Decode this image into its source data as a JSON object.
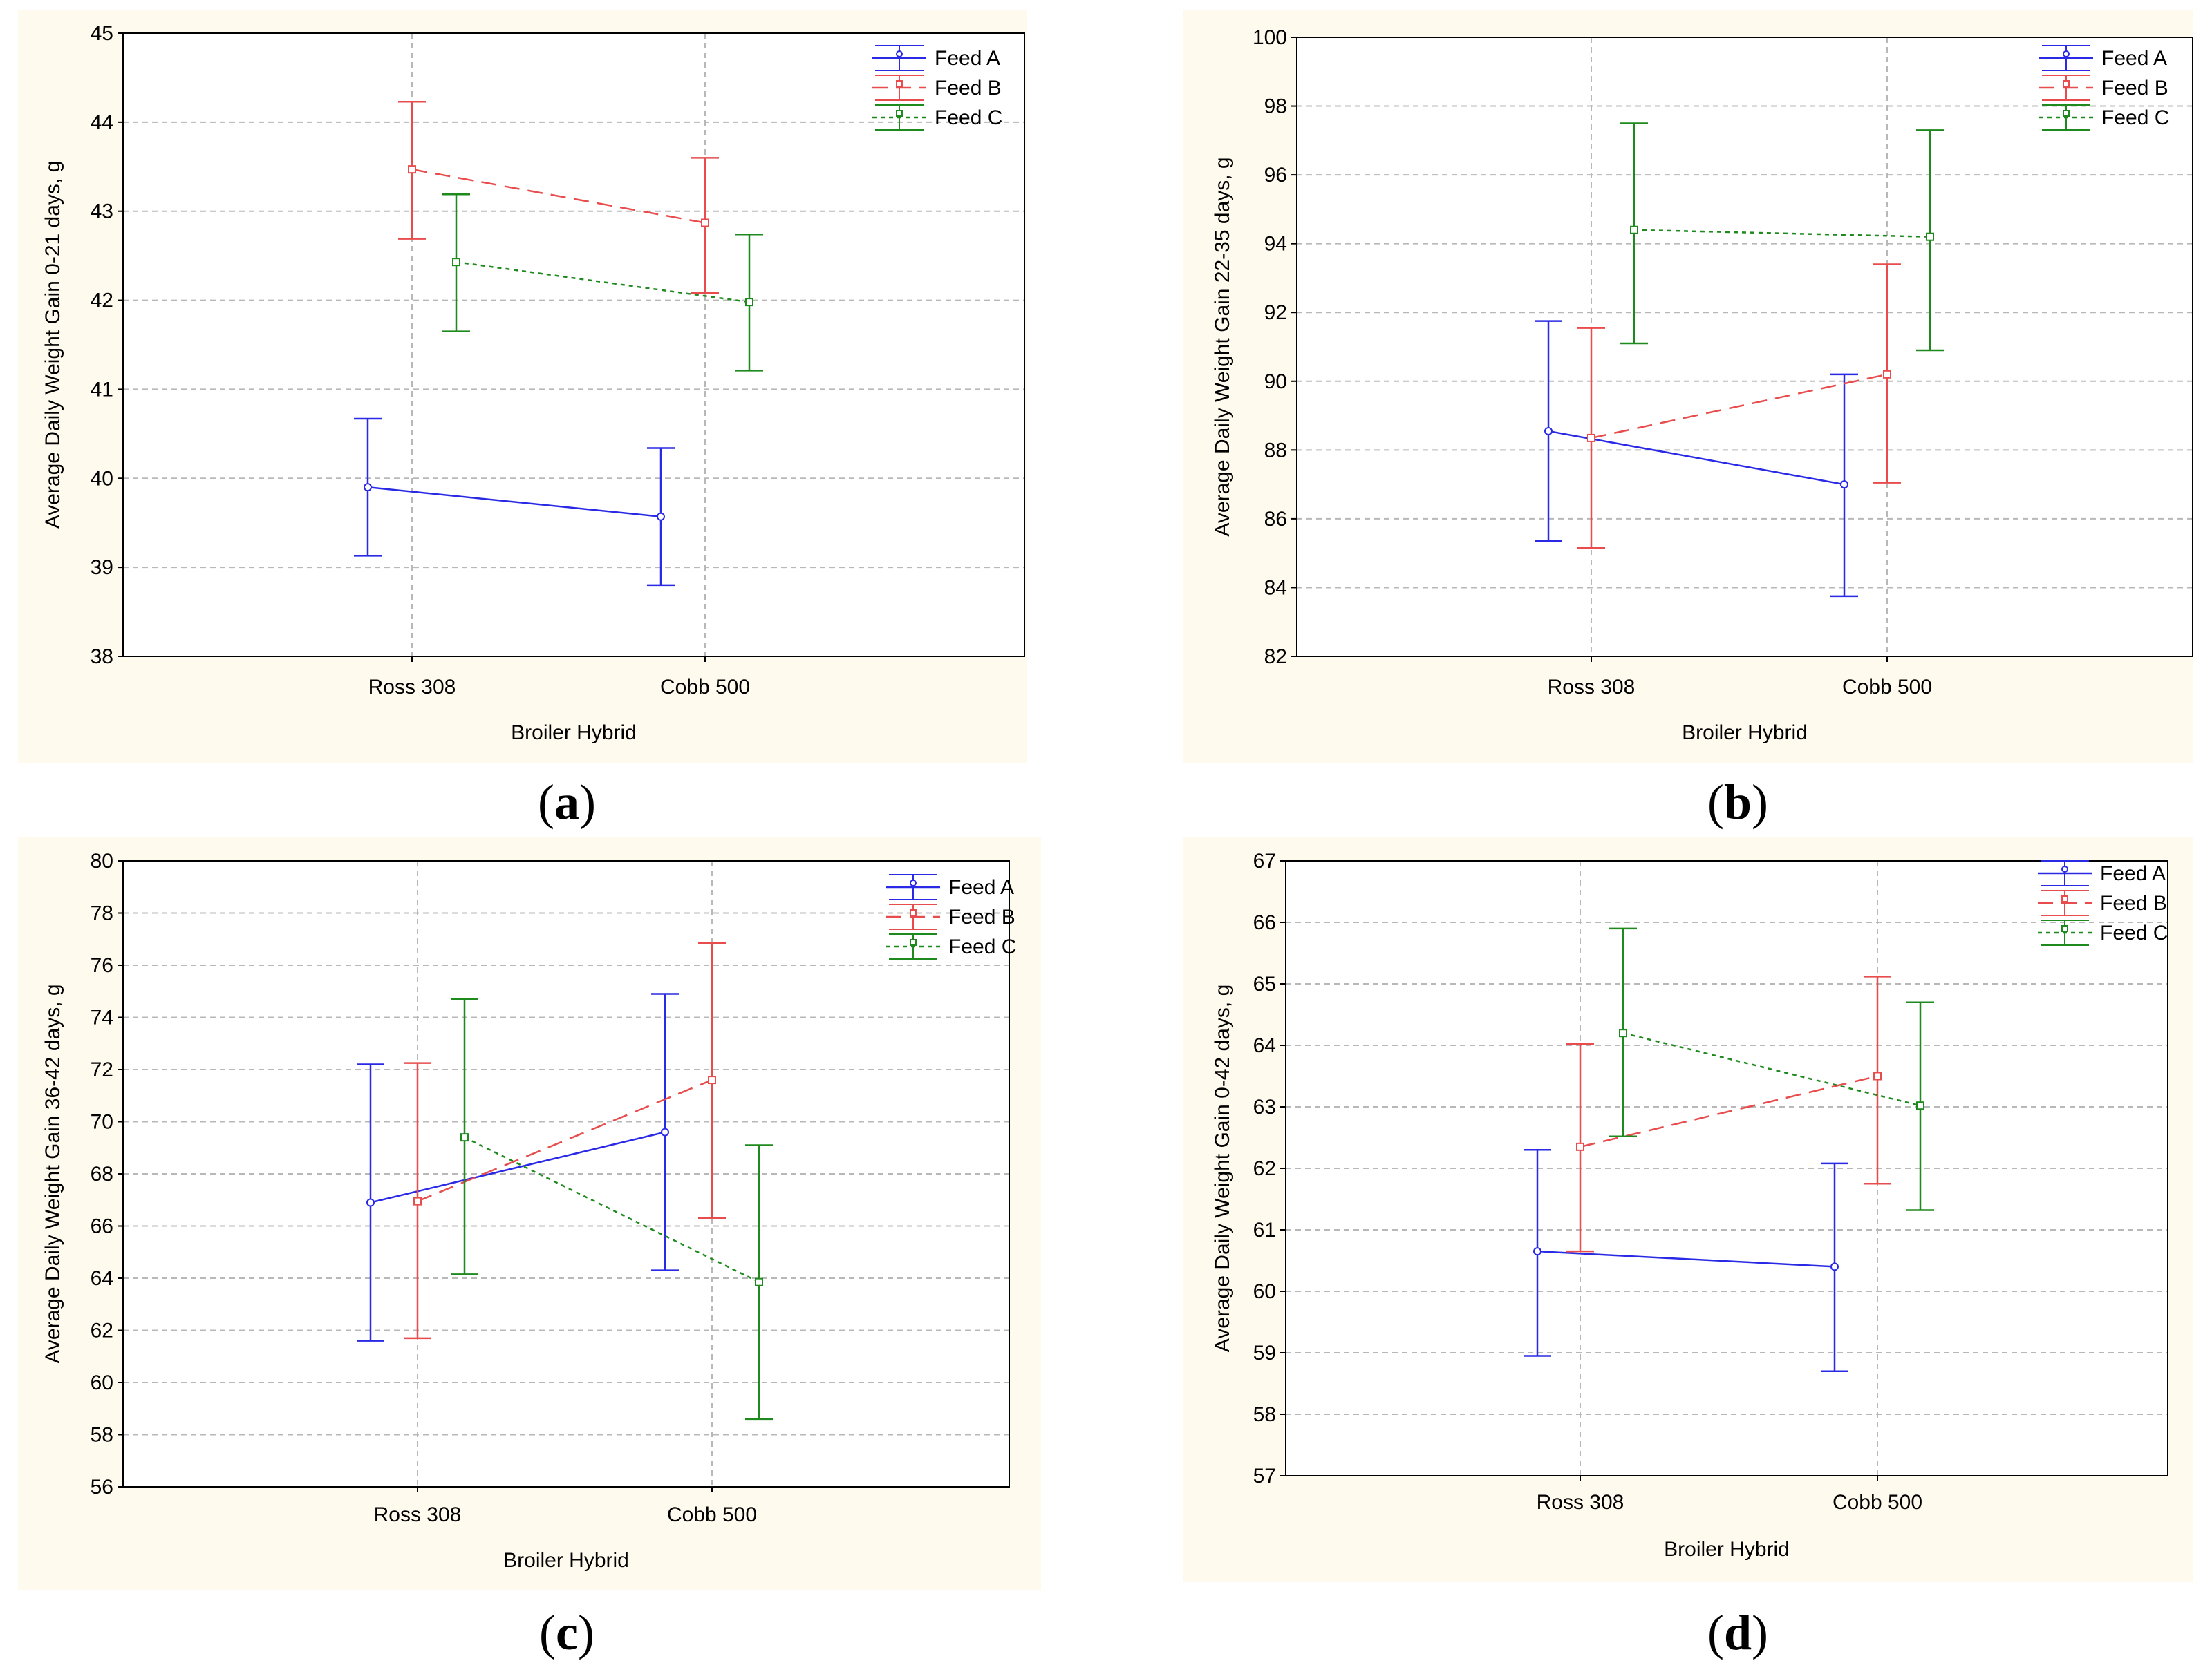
{
  "chart_data": [
    {
      "type": "line",
      "panel_label": "a",
      "xlabel": "Broiler Hybrid",
      "ylabel": "Average Daily Weight Gain 0-21 days, g",
      "categories": [
        "Ross 308",
        "Cobb 500"
      ],
      "ylim": [
        38,
        45
      ],
      "yticks": [
        38,
        39,
        40,
        41,
        42,
        43,
        44,
        45
      ],
      "grid": true,
      "legend_position": "top-right",
      "series": [
        {
          "name": "Feed A",
          "color": "#2a2ae6",
          "marker": "circle",
          "dash": "solid",
          "values": [
            39.9,
            39.57
          ],
          "lower": [
            39.13,
            38.8
          ],
          "upper": [
            40.67,
            40.34
          ]
        },
        {
          "name": "Feed B",
          "color": "#e84c4c",
          "marker": "square",
          "dash": "dashed",
          "values": [
            43.47,
            42.87
          ],
          "lower": [
            42.69,
            42.08
          ],
          "upper": [
            44.23,
            43.6
          ]
        },
        {
          "name": "Feed C",
          "color": "#1e8a1e",
          "marker": "square",
          "dash": "dotted",
          "values": [
            42.43,
            41.98
          ],
          "lower": [
            41.65,
            41.21
          ],
          "upper": [
            43.19,
            42.74
          ]
        }
      ]
    },
    {
      "type": "line",
      "panel_label": "b",
      "xlabel": "Broiler Hybrid",
      "ylabel": "Average Daily Weight Gain 22-35 days, g",
      "categories": [
        "Ross 308",
        "Cobb 500"
      ],
      "ylim": [
        82,
        100
      ],
      "yticks": [
        82,
        84,
        86,
        88,
        90,
        92,
        94,
        96,
        98,
        100
      ],
      "grid": true,
      "legend_position": "top-right",
      "series": [
        {
          "name": "Feed A",
          "color": "#2a2ae6",
          "marker": "circle",
          "dash": "solid",
          "values": [
            88.55,
            87.0
          ],
          "lower": [
            85.35,
            83.75
          ],
          "upper": [
            91.75,
            90.2
          ]
        },
        {
          "name": "Feed B",
          "color": "#e84c4c",
          "marker": "square",
          "dash": "dashed",
          "values": [
            88.35,
            90.2
          ],
          "lower": [
            85.15,
            87.05
          ],
          "upper": [
            91.55,
            93.4
          ]
        },
        {
          "name": "Feed C",
          "color": "#1e8a1e",
          "marker": "square",
          "dash": "dotted",
          "values": [
            94.4,
            94.2
          ],
          "lower": [
            91.1,
            90.9
          ],
          "upper": [
            97.5,
            97.3
          ]
        }
      ]
    },
    {
      "type": "line",
      "panel_label": "c",
      "xlabel": "Broiler Hybrid",
      "ylabel": "Average Daily Weight Gain 36-42 days, g",
      "categories": [
        "Ross 308",
        "Cobb 500"
      ],
      "ylim": [
        56,
        80
      ],
      "yticks": [
        56,
        58,
        60,
        62,
        64,
        66,
        68,
        70,
        72,
        74,
        76,
        78,
        80
      ],
      "grid": true,
      "legend_position": "top-right",
      "series": [
        {
          "name": "Feed A",
          "color": "#2a2ae6",
          "marker": "circle",
          "dash": "solid",
          "values": [
            66.9,
            69.6
          ],
          "lower": [
            61.6,
            64.3
          ],
          "upper": [
            72.2,
            74.9
          ]
        },
        {
          "name": "Feed B",
          "color": "#e84c4c",
          "marker": "square",
          "dash": "dashed",
          "values": [
            66.95,
            71.6
          ],
          "lower": [
            61.7,
            66.3
          ],
          "upper": [
            72.25,
            76.85
          ]
        },
        {
          "name": "Feed C",
          "color": "#1e8a1e",
          "marker": "square",
          "dash": "dotted",
          "values": [
            69.4,
            63.85
          ],
          "lower": [
            64.15,
            58.6
          ],
          "upper": [
            74.7,
            69.1
          ]
        }
      ]
    },
    {
      "type": "line",
      "panel_label": "d",
      "xlabel": "Broiler Hybrid",
      "ylabel": "Average Daily Weight Gain 0-42 days, g",
      "categories": [
        "Ross 308",
        "Cobb 500"
      ],
      "ylim": [
        57,
        67
      ],
      "yticks": [
        57,
        58,
        59,
        60,
        61,
        62,
        63,
        64,
        65,
        66,
        67
      ],
      "grid": true,
      "legend_position": "top-right",
      "series": [
        {
          "name": "Feed A",
          "color": "#2a2ae6",
          "marker": "circle",
          "dash": "solid",
          "values": [
            60.65,
            60.4
          ],
          "lower": [
            58.95,
            58.7
          ],
          "upper": [
            62.3,
            62.08
          ]
        },
        {
          "name": "Feed B",
          "color": "#e84c4c",
          "marker": "square",
          "dash": "dashed",
          "values": [
            62.35,
            63.5
          ],
          "lower": [
            60.65,
            61.75
          ],
          "upper": [
            64.02,
            65.12
          ]
        },
        {
          "name": "Feed C",
          "color": "#1e8a1e",
          "marker": "square",
          "dash": "dotted",
          "values": [
            64.2,
            63.02
          ],
          "lower": [
            62.52,
            61.32
          ],
          "upper": [
            65.9,
            64.7
          ]
        }
      ]
    }
  ]
}
